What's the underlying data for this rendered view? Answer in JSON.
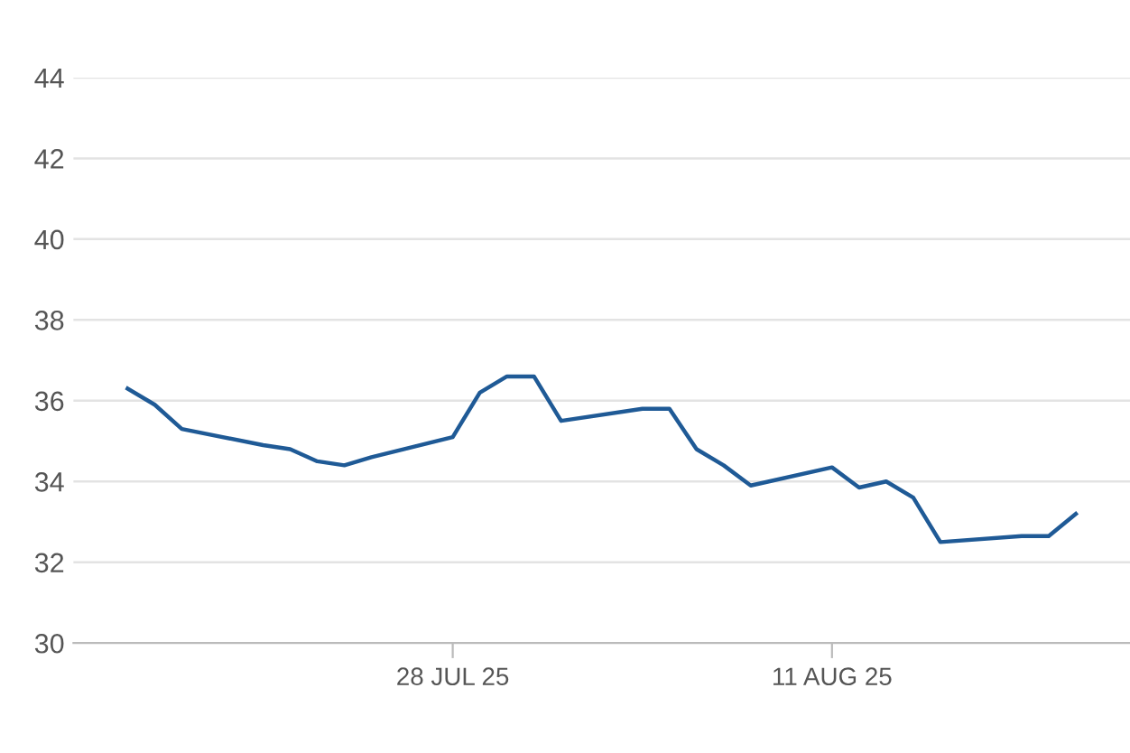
{
  "chart_data": {
    "type": "line",
    "x": [
      "2025-07-16",
      "2025-07-17",
      "2025-07-18",
      "2025-07-21",
      "2025-07-22",
      "2025-07-23",
      "2025-07-24",
      "2025-07-25",
      "2025-07-28",
      "2025-07-29",
      "2025-07-30",
      "2025-07-31",
      "2025-08-01",
      "2025-08-04",
      "2025-08-05",
      "2025-08-06",
      "2025-08-07",
      "2025-08-08",
      "2025-08-11",
      "2025-08-12",
      "2025-08-13",
      "2025-08-14",
      "2025-08-15",
      "2025-08-18",
      "2025-08-19",
      "2025-08-20"
    ],
    "series": [
      {
        "color": "#1f5a96",
        "values": [
          36.3,
          35.9,
          35.3,
          34.9,
          34.8,
          34.5,
          34.4,
          34.6,
          35.1,
          36.2,
          36.6,
          36.6,
          35.5,
          35.8,
          35.8,
          34.8,
          34.4,
          33.9,
          34.35,
          33.85,
          34.0,
          33.6,
          32.5,
          32.65,
          32.65,
          33.2
        ]
      }
    ],
    "xlim": [
      "2025-07-14",
      "2025-08-22"
    ],
    "xticks": [
      {
        "value": "2025-07-28",
        "label": "28 JUL 25"
      },
      {
        "value": "2025-08-11",
        "label": "11 AUG 25"
      }
    ],
    "ylim": [
      30,
      44
    ],
    "yticks": [
      30,
      32,
      34,
      36,
      38,
      40,
      42,
      44
    ],
    "grid": "y",
    "legend": false,
    "marker": "none",
    "line_style": "solid"
  }
}
